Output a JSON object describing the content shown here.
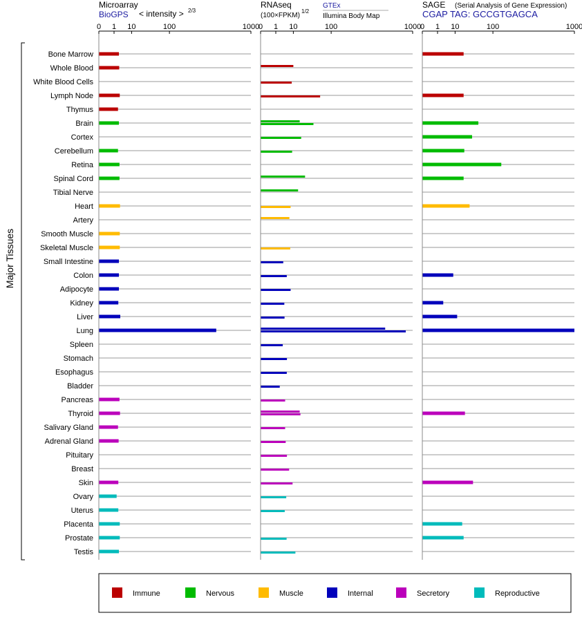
{
  "panels": [
    {
      "title": "Microarray",
      "subtitle": "BioGPS",
      "note": "< intensity >",
      "note_exp": "2/3"
    },
    {
      "title": "RNAseq",
      "note": "(100×FPKM)",
      "note_exp": "1/2",
      "src1": "GTEx",
      "src2": "Illumina Body Map"
    },
    {
      "title": "SAGE",
      "note": "(Serial Analysis of Gene Expression)",
      "subtitle": "CGAP  TAG: GCCGTGAGCA"
    }
  ],
  "axis_ticks": [
    "0",
    "1",
    "10",
    "100",
    "1000"
  ],
  "y_axis_label": "Major Tissues",
  "legend": [
    {
      "label": "Immune",
      "color": "#bb0000"
    },
    {
      "label": "Nervous",
      "color": "#00bb00"
    },
    {
      "label": "Muscle",
      "color": "#ffbb00"
    },
    {
      "label": "Internal",
      "color": "#0000bb"
    },
    {
      "label": "Secretory",
      "color": "#bb00bb"
    },
    {
      "label": "Reproductive",
      "color": "#00bbbb"
    }
  ],
  "chart_data": {
    "type": "bar",
    "scale": "power-transformed (0, 1, 10, 100, 1000)",
    "categories": [
      "Bone Marrow",
      "Whole Blood",
      "White Blood Cells",
      "Lymph Node",
      "Thymus",
      "Brain",
      "Cortex",
      "Cerebellum",
      "Retina",
      "Spinal Cord",
      "Tibial Nerve",
      "Heart",
      "Artery",
      "Smooth Muscle",
      "Skeletal Muscle",
      "Small Intestine",
      "Colon",
      "Adipocyte",
      "Kidney",
      "Liver",
      "Lung",
      "Spleen",
      "Stomach",
      "Esophagus",
      "Bladder",
      "Pancreas",
      "Thyroid",
      "Salivary Gland",
      "Adrenal Gland",
      "Pituitary",
      "Breast",
      "Skin",
      "Ovary",
      "Uterus",
      "Placenta",
      "Prostate",
      "Testis"
    ],
    "groups": [
      "Immune",
      "Immune",
      "Immune",
      "Immune",
      "Immune",
      "Nervous",
      "Nervous",
      "Nervous",
      "Nervous",
      "Nervous",
      "Nervous",
      "Muscle",
      "Muscle",
      "Muscle",
      "Muscle",
      "Internal",
      "Internal",
      "Internal",
      "Internal",
      "Internal",
      "Internal",
      "Internal",
      "Internal",
      "Internal",
      "Internal",
      "Secretory",
      "Secretory",
      "Secretory",
      "Secretory",
      "Secretory",
      "Secretory",
      "Secretory",
      "Reproductive",
      "Reproductive",
      "Reproductive",
      "Reproductive",
      "Reproductive"
    ],
    "series": [
      {
        "name": "Microarray",
        "values": [
          2.3,
          2.4,
          null,
          2.6,
          2.0,
          2.3,
          null,
          2.0,
          2.5,
          2.5,
          null,
          2.7,
          null,
          2.6,
          2.6,
          2.3,
          2.3,
          2.3,
          2.1,
          2.8,
          460,
          null,
          null,
          null,
          null,
          2.5,
          2.7,
          2.0,
          2.2,
          null,
          null,
          2.1,
          1.6,
          2.1,
          2.6,
          2.6,
          2.3
        ]
      },
      {
        "name": "GTEx",
        "values": [
          null,
          10,
          null,
          null,
          null,
          17,
          null,
          null,
          null,
          25,
          15,
          null,
          6.8,
          null,
          null,
          null,
          null,
          null,
          null,
          null,
          550,
          null,
          null,
          null,
          null,
          null,
          17,
          null,
          null,
          null,
          null,
          null,
          null,
          null,
          null,
          null,
          null
        ]
      },
      {
        "name": "Illumina Body Map",
        "values": [
          null,
          null,
          8.6,
          60,
          null,
          42,
          19,
          8.9,
          null,
          null,
          null,
          7.7,
          null,
          null,
          7.4,
          3.3,
          5.1,
          7.7,
          3.8,
          3.9,
          870,
          3.1,
          5.2,
          5.1,
          2.0,
          4.2,
          18,
          4.2,
          4.5,
          5.2,
          6.6,
          9.3,
          4.8,
          4.0,
          null,
          5.0,
          12
        ]
      },
      {
        "name": "SAGE",
        "values": [
          20,
          null,
          null,
          20,
          null,
          50,
          35,
          21,
          140,
          20,
          null,
          30,
          null,
          null,
          null,
          null,
          8.4,
          null,
          2.6,
          12,
          1000,
          null,
          null,
          null,
          null,
          null,
          22,
          null,
          null,
          null,
          null,
          37,
          null,
          null,
          18,
          20,
          null
        ]
      }
    ],
    "xlim": [
      0,
      1000
    ]
  }
}
